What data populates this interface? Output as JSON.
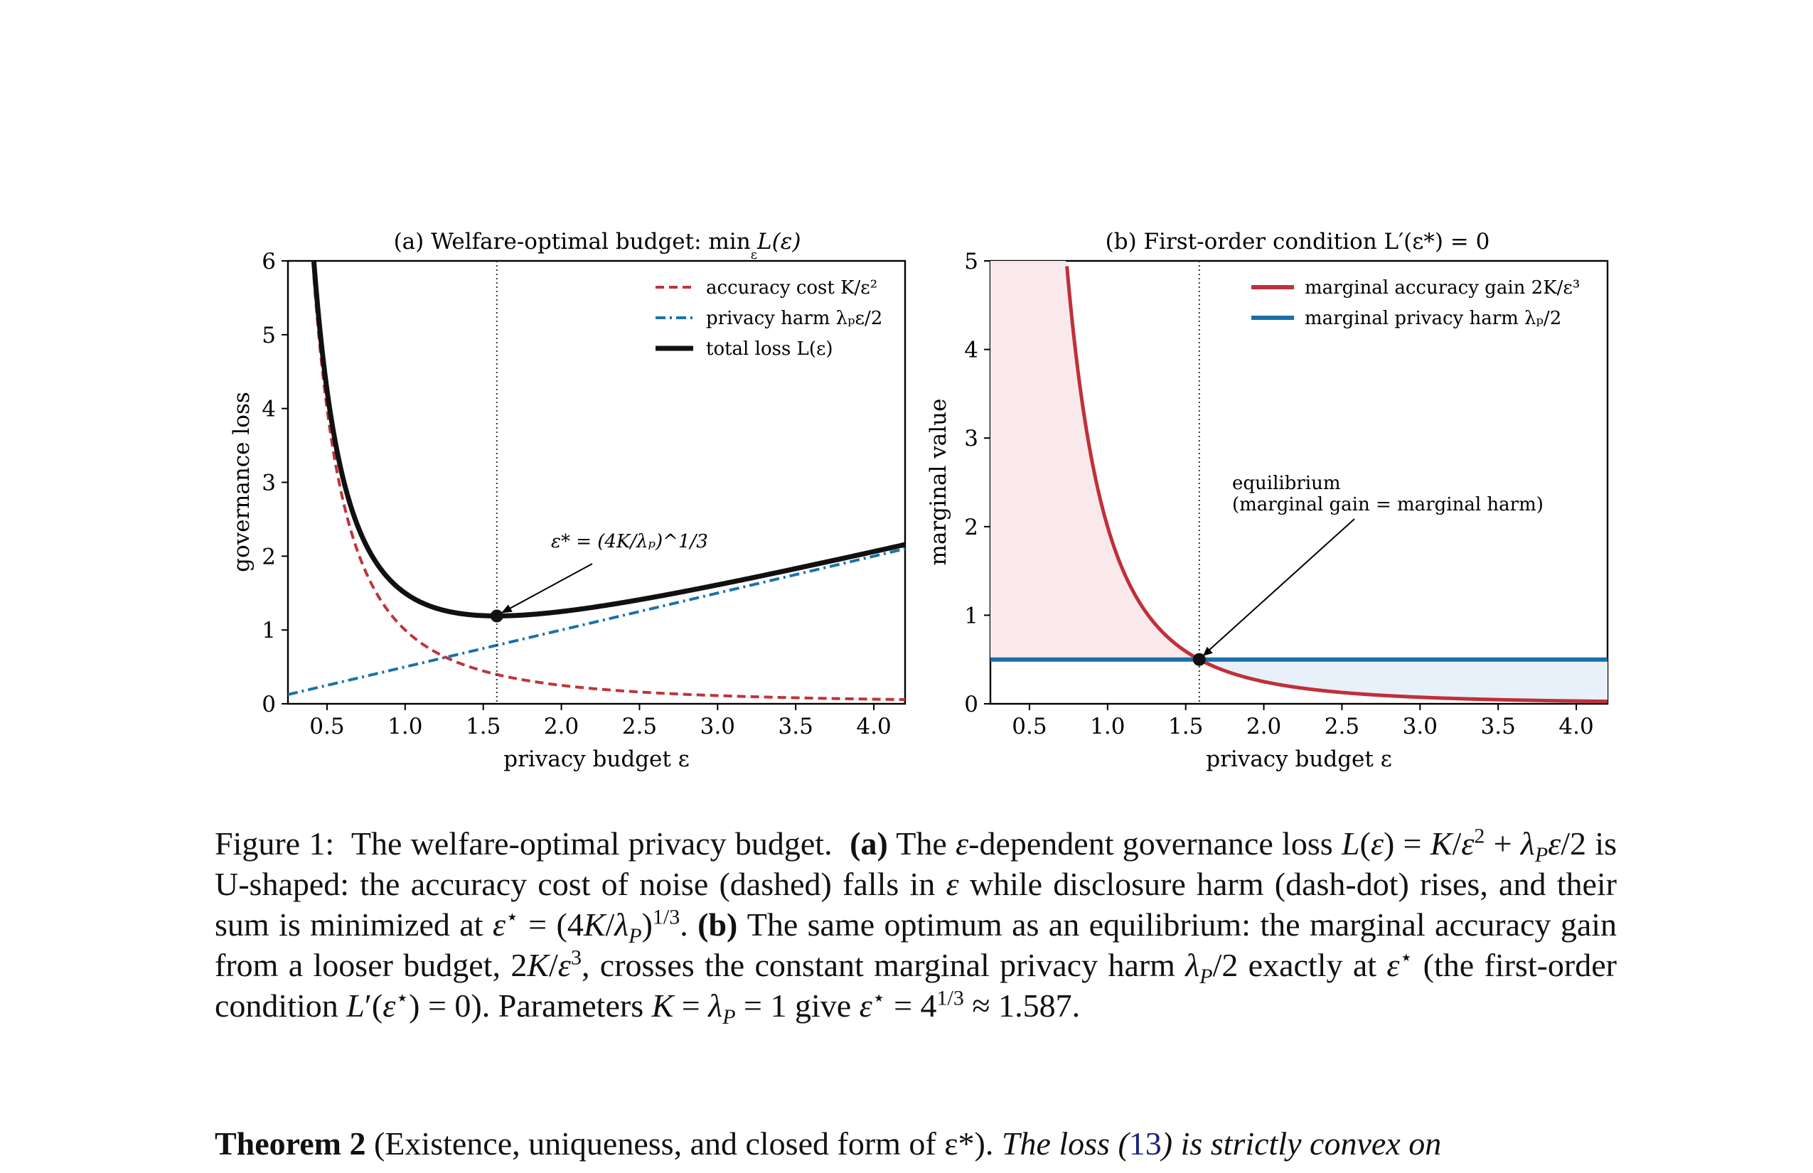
{
  "panels": [
    {
      "title": "(a) Welfare-optimal budget: min",
      "title_sub": "ε",
      "title_tail": "L(ε)",
      "xlabel": "privacy budget ε",
      "ylabel": "governance loss",
      "legend": [
        {
          "label": "accuracy cost K/ε²",
          "style": "dashed",
          "color": "#c0343a"
        },
        {
          "label": "privacy harm λₚε/2",
          "style": "dashdot",
          "color": "#1a72aa"
        },
        {
          "label": "total loss L(ε)",
          "style": "solid",
          "color": "#111111"
        }
      ],
      "annotation": "ε* = (4K/λₚ)^1/3"
    },
    {
      "title": "(b) First-order condition L′(ε*) = 0",
      "xlabel": "privacy budget ε",
      "ylabel": "marginal value",
      "legend": [
        {
          "label": "marginal accuracy gain 2K/ε³",
          "style": "solid",
          "color": "#bf3039"
        },
        {
          "label": "marginal privacy harm λₚ/2",
          "style": "solid",
          "color": "#1a6fa8"
        }
      ],
      "annotation_line1": "equilibrium",
      "annotation_line2": "(marginal gain = marginal harm)"
    }
  ],
  "chart_data": [
    {
      "type": "line",
      "title": "(a) Welfare-optimal budget: min_ε L(ε)",
      "xlabel": "privacy budget ε",
      "ylabel": "governance loss",
      "xlim": [
        0.25,
        4.2
      ],
      "ylim": [
        0,
        6
      ],
      "xticks": [
        0.5,
        1.0,
        1.5,
        2.0,
        2.5,
        3.0,
        3.5,
        4.0
      ],
      "yticks": [
        0,
        1,
        2,
        3,
        4,
        5,
        6
      ],
      "params": {
        "K": 1,
        "lambda_P": 1
      },
      "series": [
        {
          "name": "accuracy cost K/ε²",
          "formula": "K/x^2",
          "color": "#c0343a",
          "style": "dashed"
        },
        {
          "name": "privacy harm λPε/2",
          "formula": "lambda_P*x/2",
          "color": "#1a72aa",
          "style": "dashdot"
        },
        {
          "name": "total loss L(ε)",
          "formula": "K/x^2 + lambda_P*x/2",
          "color": "#111111",
          "style": "solid"
        }
      ],
      "optimum": {
        "x": 1.587,
        "y": 1.19
      },
      "legend_position": "top-right",
      "grid": false
    },
    {
      "type": "line",
      "title": "(b) First-order condition L′(ε*) = 0",
      "xlabel": "privacy budget ε",
      "ylabel": "marginal value",
      "xlim": [
        0.25,
        4.2
      ],
      "ylim": [
        0,
        5
      ],
      "xticks": [
        0.5,
        1.0,
        1.5,
        2.0,
        2.5,
        3.0,
        3.5,
        4.0
      ],
      "yticks": [
        0,
        1,
        2,
        3,
        4,
        5
      ],
      "series": [
        {
          "name": "marginal accuracy gain 2K/ε³",
          "formula": "2*K/x^3",
          "color": "#bf3039",
          "style": "solid"
        },
        {
          "name": "marginal privacy harm λP/2",
          "formula": "lambda_P/2",
          "color": "#1a6fa8",
          "style": "solid"
        }
      ],
      "optimum": {
        "x": 1.587,
        "y": 0.5
      },
      "legend_position": "top-right",
      "grid": false
    }
  ],
  "caption": {
    "label": "Figure 1:",
    "intro": "The welfare-optimal privacy budget.",
    "a_tag": "(a)",
    "b_tag": "(b)",
    "approx": "≈ 1.587."
  },
  "theorem": {
    "label": "Theorem 2",
    "head": "(Existence, uniqueness, and closed form of ε*).",
    "text_before_ref": "The loss (",
    "ref": "13",
    "text_after_ref": ") is strictly convex on"
  }
}
